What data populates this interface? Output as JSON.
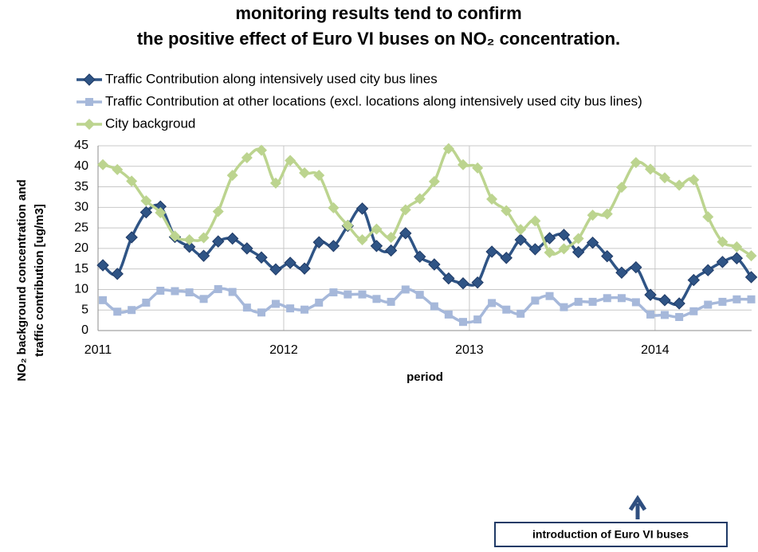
{
  "chart_data": {
    "type": "line",
    "title": [
      "monitoring results tend to confirm",
      "the positive effect of Euro VI buses on NO₂ concentration."
    ],
    "xlabel": "period",
    "ylabel": [
      "NO₂ background concentration and",
      "traffic contribution  [ug/m3]"
    ],
    "annotation": "introduction of Euro VI buses",
    "xlim": [
      2011,
      2014.52
    ],
    "xticks": [
      2011,
      2012,
      2013,
      2014
    ],
    "ylim": [
      0,
      45
    ],
    "yticks": [
      0,
      5,
      10,
      15,
      20,
      25,
      30,
      35,
      40,
      45
    ],
    "grid": true,
    "x": [
      2011.026,
      2011.104,
      2011.181,
      2011.259,
      2011.336,
      2011.414,
      2011.492,
      2011.569,
      2011.647,
      2011.724,
      2011.802,
      2011.88,
      2011.957,
      2012.035,
      2012.112,
      2012.19,
      2012.268,
      2012.345,
      2012.423,
      2012.5,
      2012.578,
      2012.656,
      2012.733,
      2012.811,
      2012.888,
      2012.966,
      2013.044,
      2013.121,
      2013.199,
      2013.276,
      2013.354,
      2013.432,
      2013.509,
      2013.587,
      2013.664,
      2013.742,
      2013.82,
      2013.897,
      2013.975,
      2014.052,
      2014.13,
      2014.208,
      2014.285,
      2014.363,
      2014.44,
      2014.518
    ],
    "series": [
      {
        "name": "Traffic Contribution along intensively used city bus lines",
        "color": "#2f5485",
        "marker": "diamond",
        "values": [
          15.9,
          13.8,
          22.7,
          28.8,
          30.2,
          22.8,
          20.4,
          18.2,
          21.7,
          22.4,
          20.0,
          17.8,
          14.9,
          16.5,
          15.1,
          21.5,
          20.6,
          25.5,
          29.7,
          20.6,
          19.5,
          23.7,
          18.0,
          16.1,
          12.7,
          11.5,
          11.7,
          19.2,
          17.7,
          22.1,
          19.8,
          22.5,
          23.3,
          19.1,
          21.4,
          18.1,
          14.1,
          15.4,
          8.7,
          7.4,
          6.6,
          12.3,
          14.7,
          16.7,
          17.6,
          13.0
        ]
      },
      {
        "name": "Traffic Contribution at other locations (excl. locations along intensively used city bus lines)",
        "color": "#a6b8da",
        "marker": "square",
        "values": [
          7.4,
          4.6,
          5.0,
          6.8,
          9.7,
          9.6,
          9.3,
          7.7,
          10.1,
          9.4,
          5.6,
          4.4,
          6.5,
          5.4,
          5.1,
          6.8,
          9.3,
          8.8,
          8.8,
          7.7,
          7.0,
          10.0,
          8.7,
          5.9,
          3.9,
          2.1,
          2.7,
          6.7,
          5.1,
          4.1,
          7.3,
          8.4,
          5.7,
          7.0,
          7.0,
          7.9,
          7.9,
          6.9,
          3.9,
          3.8,
          3.3,
          4.7,
          6.3,
          7.0,
          7.6,
          7.6
        ]
      },
      {
        "name": "City backgroud",
        "color": "#bcd48f",
        "marker": "diamond",
        "values": [
          40.4,
          39.2,
          36.4,
          31.6,
          28.7,
          23.0,
          22.1,
          22.6,
          29.0,
          37.8,
          42.1,
          43.9,
          35.9,
          41.4,
          38.4,
          37.8,
          29.9,
          25.6,
          22.1,
          24.7,
          22.7,
          29.4,
          32.1,
          36.3,
          44.3,
          40.4,
          39.6,
          32.0,
          29.2,
          24.6,
          26.7,
          19.0,
          19.9,
          22.4,
          28.1,
          28.4,
          34.9,
          40.9,
          39.3,
          37.2,
          35.4,
          36.7,
          27.7,
          21.6,
          20.4,
          18.2
        ]
      }
    ]
  }
}
